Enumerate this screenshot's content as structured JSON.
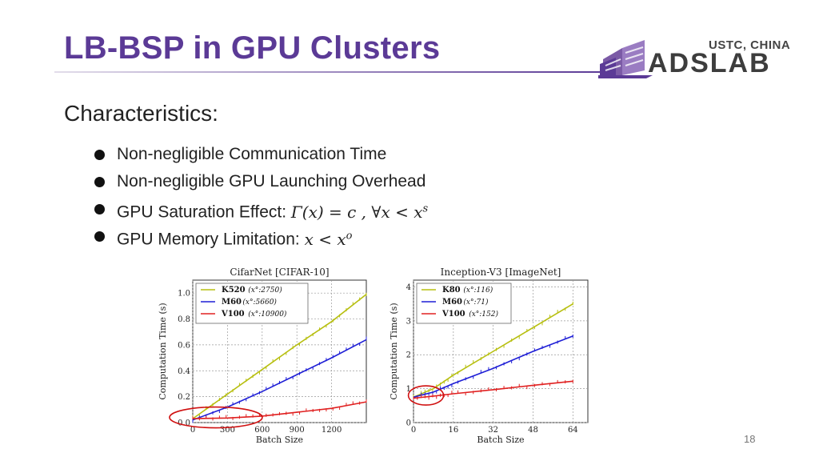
{
  "slide": {
    "title": "LB-BSP in GPU Clusters",
    "logo_top": "USTC, CHINA",
    "logo_main": "ADSLAB",
    "heading": "Characteristics:",
    "bullets": [
      "Non-negligible Communication Time",
      "Non-negligible GPU Launching Overhead",
      "GPU Saturation Effect: ",
      "GPU Memory Limitation: "
    ],
    "saturation_formula": "Γ(x) = c ,  ∀x < x",
    "saturation_sup": "s",
    "memory_formula": "x < x",
    "memory_sup": "o",
    "page_number": "18",
    "colors": {
      "title": "#5b3a96",
      "logo_purple": "#7b5aa6"
    }
  },
  "chart_data": [
    {
      "type": "line",
      "title": "CifarNet [CIFAR-10]",
      "xlabel": "Batch Size",
      "ylabel": "Computation Time (s)",
      "xlim": [
        0,
        1500
      ],
      "ylim": [
        0,
        1.1
      ],
      "xticks": [
        0,
        300,
        600,
        900,
        1200
      ],
      "yticks": [
        0.0,
        0.2,
        0.4,
        0.6,
        0.8,
        1.0
      ],
      "xtick_labels": [
        "0",
        "300",
        "600",
        "900",
        "1200"
      ],
      "ytick_labels": [
        "0.0",
        "0.2",
        "0.4",
        "0.6",
        "0.8",
        "1.0"
      ],
      "grid": true,
      "legend": "top-left",
      "annotation": "red ellipse around low batch sizes (approx. 0–600)",
      "series": [
        {
          "name": "K520",
          "note": "(x°:2750)",
          "color": "#b7bf10",
          "x": [
            0,
            300,
            600,
            900,
            1200,
            1500
          ],
          "y": [
            0.03,
            0.22,
            0.41,
            0.6,
            0.78,
            0.99
          ]
        },
        {
          "name": "M60",
          "note": "(x°:5660)",
          "color": "#1f1fd6",
          "x": [
            0,
            300,
            600,
            900,
            1200,
            1500
          ],
          "y": [
            0.02,
            0.12,
            0.24,
            0.37,
            0.5,
            0.64
          ]
        },
        {
          "name": "V100",
          "note": "(x°:10900)",
          "color": "#e02020",
          "x": [
            0,
            300,
            600,
            900,
            1200,
            1500
          ],
          "y": [
            0.03,
            0.035,
            0.05,
            0.08,
            0.11,
            0.16
          ]
        }
      ]
    },
    {
      "type": "line",
      "title": "Inception-V3 [ImageNet]",
      "xlabel": "Batch Size",
      "ylabel": "Computation Time (s)",
      "xlim": [
        0,
        70
      ],
      "ylim": [
        0,
        4.2
      ],
      "xticks": [
        0,
        16,
        32,
        48,
        64
      ],
      "yticks": [
        0,
        1,
        2,
        3,
        4
      ],
      "xtick_labels": [
        "0",
        "16",
        "32",
        "48",
        "64"
      ],
      "ytick_labels": [
        "0",
        "1",
        "2",
        "3",
        "4"
      ],
      "grid": true,
      "legend": "top-left",
      "annotation": "red ellipse around low batch sizes (approx. 0–16)",
      "series": [
        {
          "name": "K80",
          "note": "(x°:116)",
          "color": "#b7bf10",
          "x": [
            0,
            8,
            16,
            32,
            48,
            64
          ],
          "y": [
            0.75,
            1.0,
            1.4,
            2.1,
            2.8,
            3.5
          ]
        },
        {
          "name": "M60",
          "note": "(x°:71)",
          "color": "#1f1fd6",
          "x": [
            0,
            8,
            16,
            32,
            48,
            64
          ],
          "y": [
            0.75,
            0.9,
            1.15,
            1.6,
            2.1,
            2.55
          ]
        },
        {
          "name": "V100",
          "note": "(x°:152)",
          "color": "#e02020",
          "x": [
            0,
            8,
            16,
            32,
            48,
            64
          ],
          "y": [
            0.72,
            0.78,
            0.85,
            0.97,
            1.1,
            1.22
          ]
        }
      ]
    }
  ]
}
